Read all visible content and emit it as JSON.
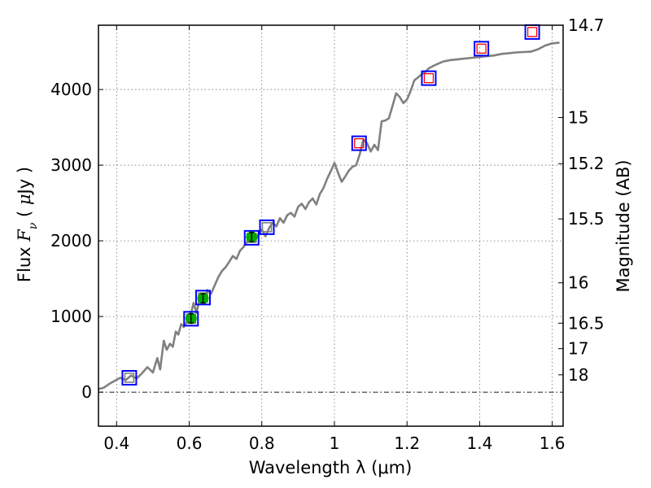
{
  "chart_data": {
    "type": "scatter",
    "xlabel": "Wavelength  λ (μm)",
    "ylabel": "Flux  Fν ( μJy )",
    "y2label": "Magnitude (AB)",
    "xlim": [
      0.35,
      1.63
    ],
    "ylim": [
      -450,
      4850
    ],
    "x_ticks": [
      0.4,
      0.6,
      0.8,
      1.0,
      1.2,
      1.4,
      1.6
    ],
    "x_tick_labels": [
      "0.4",
      "0.6",
      "0.8",
      "1",
      "1.2",
      "1.4",
      "1.6"
    ],
    "y_ticks": [
      0,
      1000,
      2000,
      3000,
      4000
    ],
    "y_tick_labels": [
      "0",
      "1000",
      "2000",
      "3000",
      "4000"
    ],
    "mag_ticks": [
      {
        "label": "14.7",
        "flux": 4850
      },
      {
        "label": "15",
        "flux": 3630
      },
      {
        "label": "15.2",
        "flux": 3020
      },
      {
        "label": "15.5",
        "flux": 2290
      },
      {
        "label": "16",
        "flux": 1445
      },
      {
        "label": "16.5",
        "flux": 912
      },
      {
        "label": "17",
        "flux": 575
      },
      {
        "label": "18",
        "flux": 229
      }
    ],
    "grid": true,
    "zero_line": true,
    "series": [
      {
        "kind": "line",
        "color": "#808080",
        "x": [
          0.35,
          0.365,
          0.38,
          0.395,
          0.41,
          0.425,
          0.44,
          0.455,
          0.47,
          0.485,
          0.5,
          0.512,
          0.52,
          0.53,
          0.538,
          0.547,
          0.555,
          0.563,
          0.57,
          0.578,
          0.585,
          0.595,
          0.603,
          0.612,
          0.62,
          0.63,
          0.64,
          0.65,
          0.66,
          0.67,
          0.68,
          0.69,
          0.7,
          0.71,
          0.72,
          0.73,
          0.74,
          0.75,
          0.76,
          0.77,
          0.78,
          0.79,
          0.8,
          0.81,
          0.82,
          0.83,
          0.84,
          0.85,
          0.86,
          0.87,
          0.88,
          0.89,
          0.9,
          0.91,
          0.92,
          0.93,
          0.94,
          0.95,
          0.96,
          0.97,
          0.98,
          0.99,
          1.0,
          1.01,
          1.02,
          1.03,
          1.04,
          1.05,
          1.06,
          1.07,
          1.08,
          1.09,
          1.1,
          1.11,
          1.12,
          1.13,
          1.14,
          1.15,
          1.16,
          1.17,
          1.18,
          1.19,
          1.2,
          1.21,
          1.22,
          1.23,
          1.24,
          1.25,
          1.26,
          1.28,
          1.3,
          1.32,
          1.34,
          1.36,
          1.38,
          1.4,
          1.42,
          1.44,
          1.46,
          1.48,
          1.5,
          1.52,
          1.54,
          1.56,
          1.58,
          1.6,
          1.62
        ],
        "y": [
          40,
          60,
          110,
          150,
          190,
          160,
          220,
          180,
          250,
          330,
          260,
          450,
          300,
          680,
          560,
          640,
          600,
          800,
          760,
          900,
          860,
          940,
          1000,
          1180,
          1050,
          1260,
          1200,
          1350,
          1300,
          1410,
          1520,
          1600,
          1650,
          1720,
          1800,
          1760,
          1870,
          1920,
          1990,
          2040,
          1990,
          2080,
          2150,
          2060,
          2170,
          2240,
          2190,
          2300,
          2240,
          2340,
          2370,
          2320,
          2450,
          2490,
          2420,
          2510,
          2560,
          2480,
          2620,
          2700,
          2820,
          2920,
          3030,
          2900,
          2780,
          2850,
          2930,
          2980,
          3000,
          3150,
          3340,
          3290,
          3180,
          3270,
          3200,
          3580,
          3590,
          3620,
          3780,
          3950,
          3900,
          3820,
          3870,
          3980,
          4120,
          4160,
          4200,
          4230,
          4280,
          4330,
          4370,
          4390,
          4400,
          4410,
          4420,
          4430,
          4440,
          4450,
          4470,
          4480,
          4490,
          4495,
          4500,
          4530,
          4580,
          4610,
          4620
        ]
      },
      {
        "kind": "square",
        "stroke": "#0000ff",
        "x": [
          0.435,
          0.605,
          0.638,
          0.772,
          0.814,
          1.068,
          1.26,
          1.405,
          1.545
        ],
        "y": [
          190,
          970,
          1250,
          2040,
          2180,
          3290,
          4150,
          4540,
          4760
        ],
        "inner": [
          "#808080",
          "#808080",
          "#808080",
          "#808080",
          "#808080",
          "#ff0000",
          "#ff0000",
          "#ff0000",
          "#ff0000"
        ]
      },
      {
        "kind": "errorbar",
        "color": "#00aa00",
        "x": [
          0.605,
          0.638,
          0.772
        ],
        "y": [
          975,
          1240,
          2050
        ],
        "err": [
          60,
          60,
          60
        ]
      }
    ]
  }
}
